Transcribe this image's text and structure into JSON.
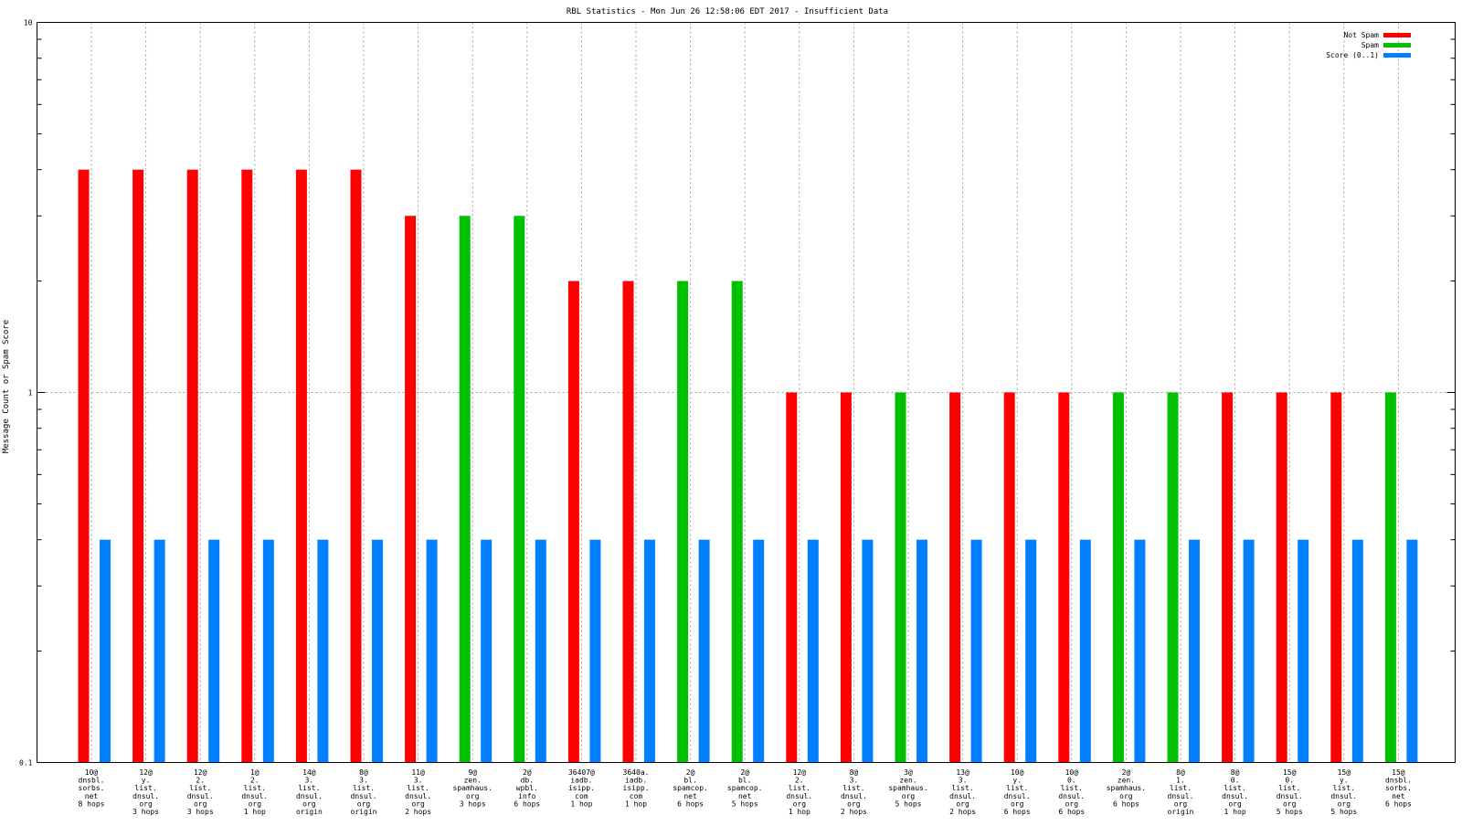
{
  "chart_data": {
    "type": "bar",
    "title": "RBL Statistics - Mon Jun 26 12:58:06 EDT 2017 - Insufficient Data",
    "ylabel": "Message Count or Spam Score",
    "xlabel": "",
    "yscale": "log",
    "ylim": [
      0.1,
      10
    ],
    "yticks": [
      "10",
      "1",
      "0.1"
    ],
    "grid": true,
    "legend_position": "top-right",
    "categories": [
      [
        "10@",
        "dnsbl.",
        "sorbs.",
        "net",
        "8 hops"
      ],
      [
        "12@",
        "y.",
        "list.",
        "dnsul.",
        "org",
        "3 hops"
      ],
      [
        "12@",
        "2.",
        "list.",
        "dnsul.",
        "org",
        "3 hops"
      ],
      [
        "1@",
        "2.",
        "list.",
        "dnsul.",
        "org",
        "1 hop"
      ],
      [
        "14@",
        "3.",
        "list.",
        "dnsul.",
        "org",
        "origin"
      ],
      [
        "8@",
        "3.",
        "list.",
        "dnsul.",
        "org",
        "origin"
      ],
      [
        "11@",
        "3.",
        "list.",
        "dnsul.",
        "org",
        "2 hops"
      ],
      [
        "9@",
        "zen.",
        "spamhaus.",
        "org",
        "3 hops"
      ],
      [
        "2@",
        "db.",
        "wpbl.",
        "info",
        "6 hops"
      ],
      [
        "36407@",
        "iadb.",
        "isipp.",
        "com",
        "1 hop"
      ],
      [
        "3640a.",
        "iadb.",
        "isipp.",
        "com",
        "1 hop"
      ],
      [
        "2@",
        "bl.",
        "spamcop.",
        "net",
        "6 hops"
      ],
      [
        "2@",
        "bl.",
        "spamcop.",
        "net",
        "5 hops"
      ],
      [
        "12@",
        "2.",
        "list.",
        "dnsul.",
        "org",
        "1 hop"
      ],
      [
        "8@",
        "3.",
        "list.",
        "dnsul.",
        "org",
        "2 hops"
      ],
      [
        "3@",
        "zen.",
        "spamhaus.",
        "org",
        "5 hops"
      ],
      [
        "13@",
        "3.",
        "list.",
        "dnsul.",
        "org",
        "2 hops"
      ],
      [
        "10@",
        "y.",
        "list.",
        "dnsul.",
        "org",
        "6 hops"
      ],
      [
        "10@",
        "0.",
        "list.",
        "dnsul.",
        "org",
        "6 hops"
      ],
      [
        "2@",
        "zen.",
        "spamhaus.",
        "org",
        "6 hops"
      ],
      [
        "8@",
        "1.",
        "list.",
        "dnsul.",
        "org",
        "origin"
      ],
      [
        "8@",
        "0.",
        "list.",
        "dnsul.",
        "org",
        "1 hop"
      ],
      [
        "15@",
        "0.",
        "list.",
        "dnsul.",
        "org",
        "5 hops"
      ],
      [
        "15@",
        "y.",
        "list.",
        "dnsul.",
        "org",
        "5 hops"
      ],
      [
        "15@",
        "dnsbl.",
        "sorbs.",
        "net",
        "6 hops"
      ]
    ],
    "series": [
      {
        "name": "Not Spam",
        "color": "#ff0000",
        "values": [
          4,
          4,
          4,
          4,
          4,
          4,
          3,
          null,
          null,
          2,
          2,
          null,
          null,
          1,
          1,
          null,
          1,
          1,
          1,
          null,
          null,
          1,
          1,
          1,
          null
        ]
      },
      {
        "name": "Spam",
        "color": "#00c000",
        "values": [
          null,
          null,
          null,
          null,
          null,
          null,
          null,
          3,
          3,
          null,
          null,
          2,
          2,
          null,
          null,
          1,
          null,
          null,
          null,
          1,
          1,
          null,
          null,
          null,
          1
        ]
      },
      {
        "name": "Score (0..1)",
        "color": "#0080ff",
        "values": [
          0.4,
          0.4,
          0.4,
          0.4,
          0.4,
          0.4,
          0.4,
          0.4,
          0.4,
          0.4,
          0.4,
          0.4,
          0.4,
          0.4,
          0.4,
          0.4,
          0.4,
          0.4,
          0.4,
          0.4,
          0.4,
          0.4,
          0.4,
          0.4,
          0.4
        ]
      }
    ]
  }
}
